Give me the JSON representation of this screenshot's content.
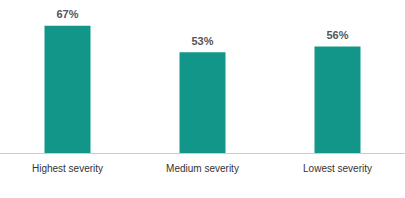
{
  "chart_data": {
    "type": "bar",
    "categories": [
      "Highest severity",
      "Medium severity",
      "Lowest severity"
    ],
    "values": [
      67,
      53,
      56
    ],
    "value_labels": [
      "67%",
      "53%",
      "56%"
    ],
    "color": "#13968a",
    "ylim": [
      0,
      80
    ],
    "grid": false,
    "data_labels": true,
    "tick_labels": "x"
  }
}
